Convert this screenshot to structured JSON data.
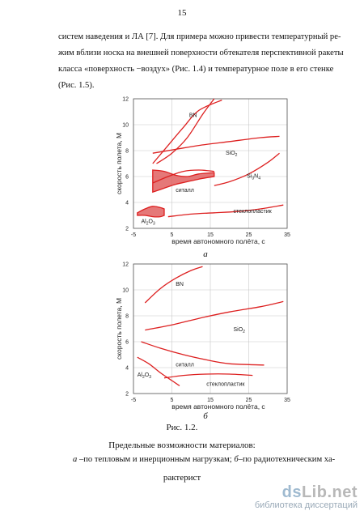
{
  "page": {
    "number": "15"
  },
  "text": {
    "lines": [
      "систем наведения и ЛА [7]. Для примера можно привести температурный ре-",
      "жим вблизи носка на внешней поверхности обтекателя перспективной ракеты",
      "класса «поверхность −воздух» (Рис. 1.4) и температурное поле в его стенке",
      "(Рис. 1.5)."
    ]
  },
  "figure": {
    "label": "Рис. 1.2.",
    "title": "Предельные возможности материалов:",
    "desc_line1_a": "а",
    "desc_line1_b": " –по тепловым и инерционным нагрузкам; ",
    "desc_line1_c": "б",
    "desc_line1_d": "–по радиотехническим ха-",
    "desc_line2": "рактерист"
  },
  "chart_data": [
    {
      "type": "line",
      "panel_label": "а",
      "ylabel": "скорость полета, М",
      "xlabel": "время автономного полёта, с",
      "xlim": [
        -5,
        35
      ],
      "ylim": [
        2,
        12
      ],
      "x_ticks": [
        "-5",
        "5",
        "15",
        "25",
        "35"
      ],
      "y_ticks": [
        "2",
        "4",
        "6",
        "8",
        "10",
        "12"
      ],
      "grid": true,
      "colors": {
        "series": "#dd2020",
        "grid": "#c8c8c8",
        "area_fill": "#e06060"
      },
      "series": [
        {
          "name": "BN",
          "x": [
            0,
            4,
            8,
            12,
            18
          ],
          "y": [
            7,
            8.4,
            9.8,
            11.1,
            11.9
          ]
        },
        {
          "name": "BN",
          "x": [
            1,
            5,
            9,
            13,
            16
          ],
          "y": [
            7,
            7.8,
            9,
            10.8,
            12
          ]
        },
        {
          "name": "SiO2",
          "x": [
            0,
            6,
            12,
            20,
            28,
            33
          ],
          "y": [
            7.8,
            8.1,
            8.4,
            8.7,
            9,
            9.1
          ]
        },
        {
          "name": "Si3N4",
          "x": [
            16,
            20,
            25,
            30,
            33
          ],
          "y": [
            5.3,
            5.6,
            6.2,
            7.1,
            7.8
          ]
        },
        {
          "name": "ситалл",
          "x": [
            0,
            4,
            8,
            12,
            16
          ],
          "y": [
            5.5,
            6,
            6.4,
            6.5,
            6.4
          ]
        },
        {
          "name": "стеклопластик",
          "x": [
            4,
            10,
            16,
            22,
            28,
            34
          ],
          "y": [
            2.9,
            3.1,
            3.2,
            3.3,
            3.5,
            3.8
          ]
        }
      ],
      "areas": [
        {
          "name": "ситалл",
          "x": [
            0,
            3,
            6,
            9,
            12,
            16
          ],
          "y_upper": [
            6.5,
            6.4,
            6.1,
            6.0,
            6.2,
            6.3
          ],
          "y_lower": [
            4.8,
            5.1,
            5.4,
            5.6,
            5.8,
            6.0
          ]
        },
        {
          "name": "Al2O3",
          "x": [
            -4,
            -2,
            0,
            2,
            3
          ],
          "y_upper": [
            3.2,
            3.5,
            3.7,
            3.6,
            3.5
          ],
          "y_lower": [
            3.0,
            3.0,
            2.9,
            2.9,
            3.0
          ]
        }
      ],
      "labels": [
        {
          "text": "BN",
          "x": 9.5,
          "y": 10.6
        },
        {
          "text": "SiO",
          "sub": "2",
          "x": 19,
          "y": 7.7
        },
        {
          "text": "Si",
          "sub": "3",
          "text2": "N",
          "sub2": "4",
          "x": 24.5,
          "y": 5.9
        },
        {
          "text": "ситалл",
          "x": 6,
          "y": 4.8
        },
        {
          "text": "стеклопластик",
          "x": 21,
          "y": 3.2
        },
        {
          "text": "Al",
          "sub": "2",
          "text2": "O",
          "sub2": "3",
          "x": -3,
          "y": 2.4
        }
      ]
    },
    {
      "type": "line",
      "panel_label": "б",
      "ylabel": "скорость полета, М",
      "xlabel": "время автономного полёта, с",
      "xlim": [
        -5,
        35
      ],
      "ylim": [
        2,
        12
      ],
      "x_ticks": [
        "-5",
        "5",
        "15",
        "25",
        "35"
      ],
      "y_ticks": [
        "2",
        "4",
        "6",
        "8",
        "10",
        "12"
      ],
      "grid": true,
      "colors": {
        "series": "#dd2020",
        "grid": "#c8c8c8"
      },
      "series": [
        {
          "name": "BN",
          "x": [
            -2,
            2,
            6,
            10,
            13
          ],
          "y": [
            9,
            10.1,
            10.9,
            11.5,
            11.8
          ]
        },
        {
          "name": "SiO2",
          "x": [
            -2,
            5,
            12,
            20,
            28,
            34
          ],
          "y": [
            6.9,
            7.3,
            7.8,
            8.3,
            8.7,
            9.1
          ]
        },
        {
          "name": "ситалл",
          "x": [
            -3,
            2,
            8,
            14,
            20,
            29
          ],
          "y": [
            6.0,
            5.5,
            5.0,
            4.6,
            4.3,
            4.2
          ]
        },
        {
          "name": "стеклопластик",
          "x": [
            3,
            8,
            14,
            20,
            26
          ],
          "y": [
            3.2,
            3.4,
            3.5,
            3.5,
            3.4
          ]
        },
        {
          "name": "Al2O3",
          "x": [
            -4,
            -1,
            2,
            5,
            7
          ],
          "y": [
            4.8,
            4.3,
            3.6,
            3.0,
            2.6
          ]
        }
      ],
      "labels": [
        {
          "text": "BN",
          "x": 6,
          "y": 10.3
        },
        {
          "text": "SiO",
          "sub": "2",
          "x": 21,
          "y": 6.8
        },
        {
          "text": "ситалл",
          "x": 6,
          "y": 4.1
        },
        {
          "text": "стеклопластик",
          "x": 14,
          "y": 2.6
        },
        {
          "text": "Al",
          "sub": "2",
          "text2": "O",
          "sub2": "3",
          "x": -4,
          "y": 3.3
        }
      ]
    }
  ],
  "watermark": {
    "part1": "ds",
    "part2": "Lib.net",
    "line2": "библиотека диссертаций"
  }
}
